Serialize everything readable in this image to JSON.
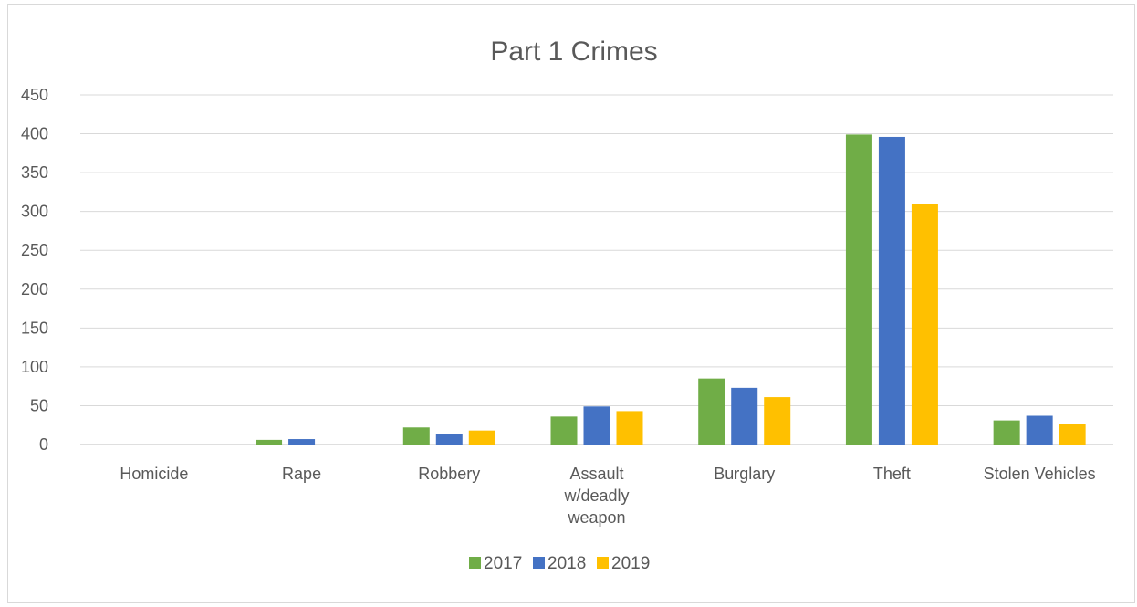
{
  "chart_data": {
    "type": "bar",
    "title": "Part 1 Crimes",
    "xlabel": "",
    "ylabel": "",
    "categories": [
      "Homicide",
      "Rape",
      "Robbery",
      "Assault w/deadly weapon",
      "Burglary",
      "Theft",
      "Stolen Vehicles"
    ],
    "category_label_lines": [
      [
        "Homicide"
      ],
      [
        "Rape"
      ],
      [
        "Robbery"
      ],
      [
        "Assault",
        "w/deadly",
        "weapon"
      ],
      [
        "Burglary"
      ],
      [
        "Theft"
      ],
      [
        "Stolen Vehicles"
      ]
    ],
    "series": [
      {
        "name": "2017",
        "color": "#70ad47",
        "values": [
          0,
          6,
          22,
          36,
          85,
          399,
          31
        ]
      },
      {
        "name": "2018",
        "color": "#4472c4",
        "values": [
          0,
          7,
          13,
          49,
          73,
          396,
          37
        ]
      },
      {
        "name": "2019",
        "color": "#ffc000",
        "values": [
          0,
          0,
          18,
          43,
          61,
          310,
          27
        ]
      }
    ],
    "ylim": [
      0,
      450
    ],
    "yticks": [
      0,
      50,
      100,
      150,
      200,
      250,
      300,
      350,
      400,
      450
    ],
    "grid": true,
    "legend_position": "bottom"
  }
}
